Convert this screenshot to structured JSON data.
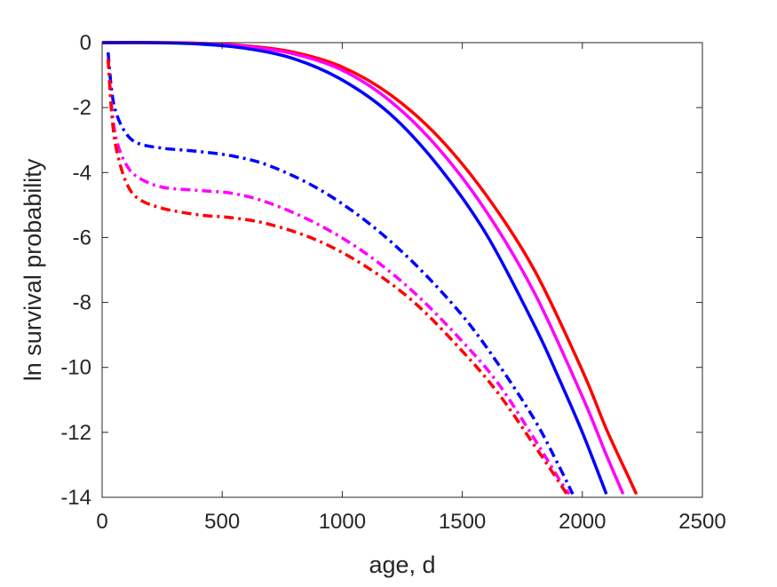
{
  "chart_data": {
    "type": "line",
    "title": "",
    "xlabel": "age, d",
    "ylabel": "ln survival probability",
    "xlim": [
      0,
      2500
    ],
    "ylim": [
      -14,
      0
    ],
    "xticks": [
      0,
      500,
      1000,
      1500,
      2000,
      2500
    ],
    "yticks": [
      0,
      -2,
      -4,
      -6,
      -8,
      -10,
      -12,
      -14
    ],
    "xtick_labels": [
      "0",
      "500",
      "1000",
      "1500",
      "2000",
      "2500"
    ],
    "ytick_labels": [
      "0",
      "-2",
      "-4",
      "-6",
      "-8",
      "-10",
      "-12",
      "-14"
    ],
    "grid": false,
    "legend": "none",
    "series": [
      {
        "color": "#ff0000",
        "style": "solid",
        "x": [
          0,
          200,
          400,
          600,
          800,
          1000,
          1200,
          1400,
          1600,
          1800,
          2000,
          2100,
          2200,
          2225
        ],
        "y": [
          0,
          0,
          -0.02,
          -0.1,
          -0.3,
          -0.75,
          -1.6,
          -2.9,
          -4.7,
          -7.0,
          -10.1,
          -11.9,
          -13.5,
          -13.9
        ]
      },
      {
        "color": "#ff00ff",
        "style": "solid",
        "x": [
          0,
          200,
          400,
          600,
          800,
          1000,
          1200,
          1400,
          1600,
          1800,
          2000,
          2100,
          2170
        ],
        "y": [
          0,
          0,
          -0.02,
          -0.12,
          -0.35,
          -0.85,
          -1.8,
          -3.25,
          -5.2,
          -7.7,
          -10.9,
          -12.7,
          -13.9
        ]
      },
      {
        "color": "#0000ff",
        "style": "solid",
        "x": [
          0,
          200,
          400,
          600,
          800,
          1000,
          1200,
          1400,
          1600,
          1800,
          1900,
          2000,
          2100
        ],
        "y": [
          0,
          0,
          -0.04,
          -0.18,
          -0.5,
          -1.15,
          -2.2,
          -3.8,
          -5.9,
          -8.7,
          -10.3,
          -12.0,
          -13.9
        ]
      },
      {
        "color": "#0000ff",
        "style": "dashdot",
        "x": [
          25,
          40,
          60,
          100,
          150,
          250,
          400,
          550,
          700,
          900,
          1100,
          1300,
          1500,
          1650,
          1800,
          1900,
          1960
        ],
        "y": [
          -0.3,
          -1.5,
          -2.2,
          -2.8,
          -3.1,
          -3.25,
          -3.35,
          -3.5,
          -3.8,
          -4.5,
          -5.5,
          -6.8,
          -8.4,
          -9.9,
          -11.6,
          -13.0,
          -13.9
        ]
      },
      {
        "color": "#ff00ff",
        "style": "dashdot",
        "x": [
          25,
          40,
          60,
          100,
          150,
          250,
          400,
          550,
          700,
          900,
          1100,
          1300,
          1500,
          1650,
          1800,
          1900,
          1945
        ],
        "y": [
          -0.5,
          -2.0,
          -3.0,
          -3.75,
          -4.15,
          -4.45,
          -4.55,
          -4.65,
          -4.95,
          -5.6,
          -6.5,
          -7.7,
          -9.2,
          -10.5,
          -12.2,
          -13.4,
          -13.9
        ]
      },
      {
        "color": "#ff0000",
        "style": "dashdot",
        "x": [
          25,
          40,
          60,
          100,
          150,
          250,
          400,
          550,
          700,
          900,
          1100,
          1300,
          1500,
          1650,
          1800,
          1900,
          1935
        ],
        "y": [
          -0.5,
          -2.2,
          -3.3,
          -4.3,
          -4.8,
          -5.1,
          -5.3,
          -5.4,
          -5.6,
          -6.1,
          -6.9,
          -8.0,
          -9.5,
          -10.8,
          -12.4,
          -13.5,
          -13.9
        ]
      }
    ]
  }
}
